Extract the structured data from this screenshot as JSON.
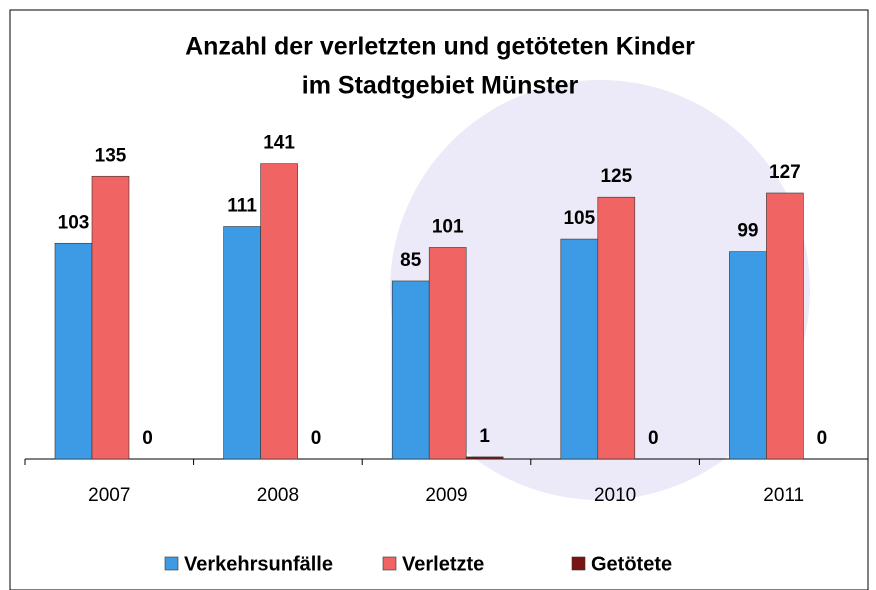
{
  "chart_data": {
    "type": "bar",
    "title": [
      "Anzahl der verletzten und getöteten Kinder",
      "im Stadtgebiet Münster"
    ],
    "categories": [
      "2007",
      "2008",
      "2009",
      "2010",
      "2011"
    ],
    "series": [
      {
        "name": "Verkehrsunfälle",
        "color": "#3d9be6",
        "values": [
          103,
          111,
          85,
          105,
          99
        ]
      },
      {
        "name": "Verletzte",
        "color": "#f06464",
        "values": [
          135,
          141,
          101,
          125,
          127
        ]
      },
      {
        "name": "Getötete",
        "color": "#7a1414",
        "values": [
          0,
          0,
          1,
          0,
          0
        ]
      }
    ],
    "ylim": [
      0,
      180
    ],
    "legend": "bottom"
  }
}
